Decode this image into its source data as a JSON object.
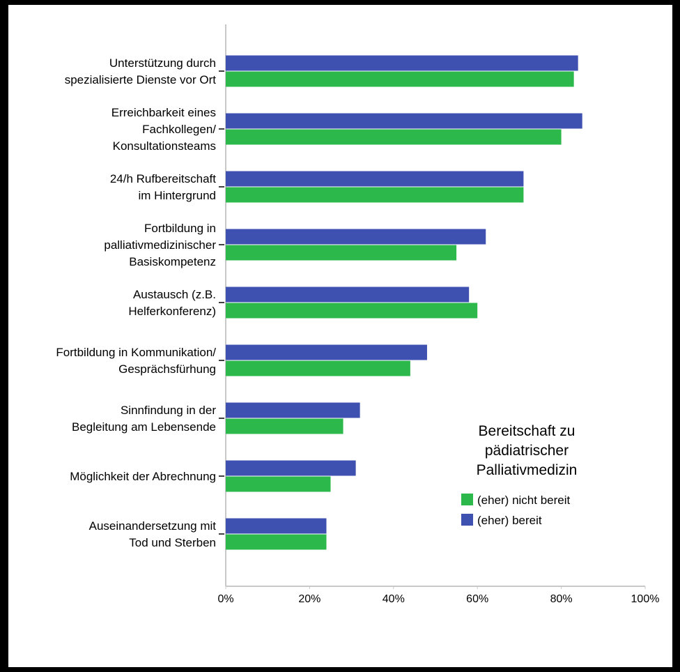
{
  "chart_data": {
    "type": "bar",
    "orientation": "horizontal",
    "categories": [
      [
        "Unterstützung durch",
        "spezialisierte Dienste vor Ort"
      ],
      [
        "Erreichbarkeit eines",
        "Fachkollegen/",
        "Konsultationsteams"
      ],
      [
        "24/h Rufbereitschaft",
        "im Hintergrund"
      ],
      [
        "Fortbildung in",
        "palliativmedizinischer",
        "Basiskompetenz"
      ],
      [
        "Austausch (z.B.",
        "Helferkonferenz)"
      ],
      [
        "Fortbildung in Kommunikation/",
        "Gesprächsfürhung"
      ],
      [
        "Sinnfindung in der",
        "Begleitung am Lebensende"
      ],
      [
        "Möglichkeit der Abrechnung"
      ],
      [
        "Auseinandersetzung mit",
        "Tod und Sterben"
      ]
    ],
    "series": [
      {
        "name": "(eher) bereit",
        "color": "#3f51b0",
        "values": [
          84,
          85,
          71,
          62,
          58,
          48,
          32,
          31,
          24
        ]
      },
      {
        "name": "(eher) nicht bereit",
        "color": "#2db84b",
        "values": [
          83,
          80,
          71,
          55,
          60,
          44,
          28,
          25,
          24
        ]
      }
    ],
    "xlim": [
      0,
      100
    ],
    "xticks": [
      "0%",
      "20%",
      "40%",
      "60%",
      "80%",
      "100%"
    ],
    "grid": false,
    "legend": {
      "title": [
        "Bereitschaft zu",
        "pädiatrischer",
        "Palliativmedizin"
      ],
      "placement": "bottom-right",
      "entries": [
        {
          "label": "(eher) nicht bereit",
          "color": "#2db84b"
        },
        {
          "label": "(eher) bereit",
          "color": "#3f51b0"
        }
      ]
    }
  }
}
